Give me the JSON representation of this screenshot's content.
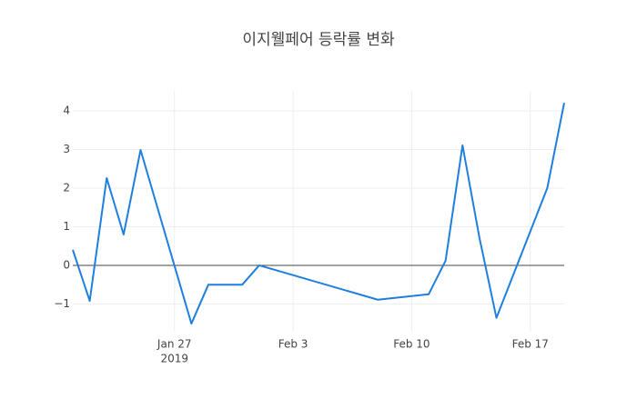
{
  "chart_data": {
    "type": "line",
    "title": "이지웰페어 등락률 변화",
    "x": [
      "2019-01-21",
      "2019-01-22",
      "2019-01-23",
      "2019-01-24",
      "2019-01-25",
      "2019-01-28",
      "2019-01-29",
      "2019-01-30",
      "2019-01-31",
      "2019-02-01",
      "2019-02-08",
      "2019-02-11",
      "2019-02-12",
      "2019-02-13",
      "2019-02-14",
      "2019-02-15",
      "2019-02-18",
      "2019-02-19"
    ],
    "series": [
      {
        "color": "#1f7fdf",
        "values": [
          0.4,
          -0.92,
          2.26,
          0.8,
          2.99,
          -1.51,
          -0.5,
          -0.5,
          -0.5,
          0,
          -0.89,
          -0.75,
          0.12,
          3.11,
          0.71,
          -1.36,
          2.0,
          4.21
        ]
      }
    ],
    "xlim": [
      "2019-01-21",
      "2019-02-19"
    ],
    "xticks": [
      {
        "value": "2019-01-27",
        "label": "Jan 27"
      },
      {
        "value": "2019-02-03",
        "label": "Feb 3"
      },
      {
        "value": "2019-02-10",
        "label": "Feb 10"
      },
      {
        "value": "2019-02-17",
        "label": "Feb 17"
      }
    ],
    "xtick_year": "2019",
    "ylim": [
      -1.72,
      4.52
    ],
    "yticks": [
      {
        "value": -1,
        "label": "−1"
      },
      0,
      1,
      2,
      3,
      4
    ],
    "grid": true
  }
}
